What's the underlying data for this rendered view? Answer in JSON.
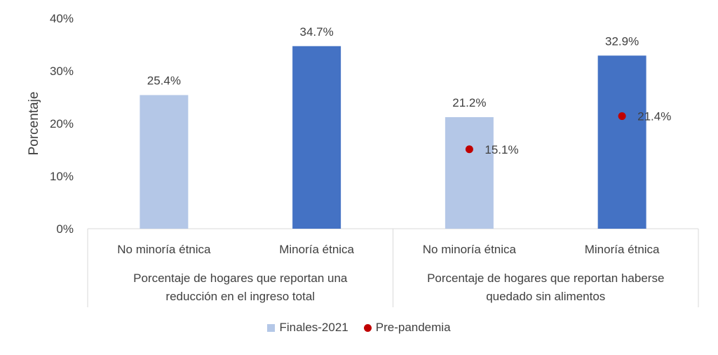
{
  "chart_data": {
    "type": "bar",
    "ylabel": "Porcentaje",
    "ylim": [
      0,
      40
    ],
    "yticks": [
      "0%",
      "10%",
      "20%",
      "30%",
      "40%"
    ],
    "categories": [
      "No minoría étnica",
      "Minoría étnica",
      "No minoría étnica",
      "Minoría étnica"
    ],
    "groups": [
      {
        "label_lines": [
          "Porcentaje de hogares que reportan una",
          "reducción en el ingreso total"
        ],
        "categories": [
          0,
          1
        ]
      },
      {
        "label_lines": [
          "Porcentaje de hogares que reportan haberse",
          "quedado sin alimentos"
        ],
        "categories": [
          2,
          3
        ]
      }
    ],
    "series": [
      {
        "name": "Finales-2021",
        "kind": "bar",
        "values": [
          25.4,
          34.7,
          21.2,
          32.9
        ],
        "labels": [
          "25.4%",
          "34.7%",
          "21.2%",
          "32.9%"
        ]
      },
      {
        "name": "Pre-pandemia",
        "kind": "marker",
        "values": [
          null,
          null,
          15.1,
          21.4
        ],
        "labels": [
          "",
          "",
          "15.1%",
          "21.4%"
        ]
      }
    ],
    "bar_colors": [
      "#b4c7e7",
      "#4472c4",
      "#b4c7e7",
      "#4472c4"
    ],
    "marker_color": "#c00000",
    "legend_position": "bottom",
    "grid": false
  }
}
